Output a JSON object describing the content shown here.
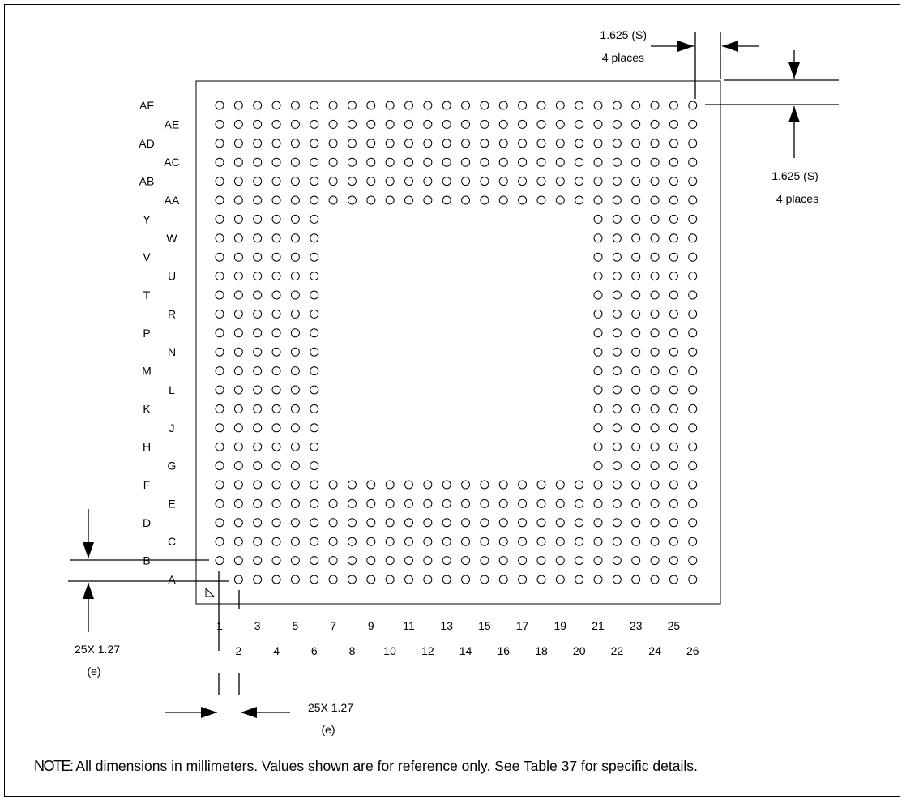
{
  "row_labels_left": [
    "AF",
    "AD",
    "AB",
    "Y",
    "V",
    "T",
    "P",
    "M",
    "K",
    "H",
    "F",
    "D",
    "B"
  ],
  "row_labels_right": [
    "AE",
    "AC",
    "AA",
    "W",
    "U",
    "R",
    "N",
    "L",
    "J",
    "G",
    "E",
    "C",
    "A"
  ],
  "column_labels_odd": [
    "1",
    "3",
    "5",
    "7",
    "9",
    "11",
    "13",
    "15",
    "17",
    "19",
    "21",
    "23",
    "25"
  ],
  "column_labels_even": [
    "2",
    "4",
    "6",
    "8",
    "10",
    "12",
    "14",
    "16",
    "18",
    "20",
    "22",
    "24",
    "26"
  ],
  "ball_grid": {
    "rows": 26,
    "columns": 26,
    "perimeter_ring_depth_rows": 6,
    "perimeter_ring_depth_columns": 6
  },
  "dimensions": {
    "top": {
      "value": "1.625 (S)",
      "places": "4 places"
    },
    "right": {
      "value": "1.625 (S)",
      "places": "4 places"
    },
    "left": {
      "value": "25X 1.27",
      "symbol": "(e)"
    },
    "bottom": {
      "value": "25X 1.27",
      "symbol": "(e)"
    }
  },
  "note": {
    "label": "NOTE:",
    "text": " All dimensions in millimeters.  Values shown are for reference only. See Table 37 for specific details."
  }
}
